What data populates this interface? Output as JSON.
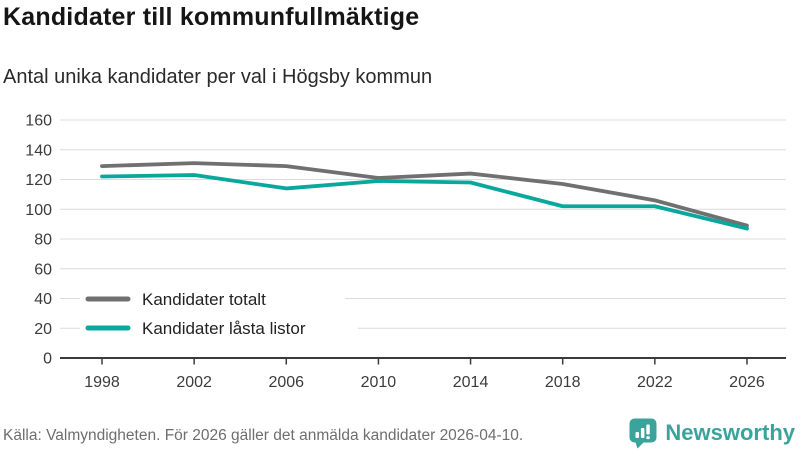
{
  "header": {
    "title": "Kandidater till kommunfullmäktige",
    "subtitle": "Antal unika kandidater per val i Högsby kommun"
  },
  "chart_data": {
    "type": "line",
    "x": [
      1998,
      2002,
      2006,
      2010,
      2014,
      2018,
      2022,
      2026
    ],
    "series": [
      {
        "name": "Kandidater totalt",
        "color": "#707070",
        "values": [
          129,
          131,
          129,
          121,
          124,
          117,
          106,
          89
        ]
      },
      {
        "name": "Kandidater låsta listor",
        "color": "#0aa79c",
        "values": [
          122,
          123,
          114,
          119,
          118,
          102,
          102,
          87
        ]
      }
    ],
    "ylim": [
      0,
      160
    ],
    "yticks": [
      0,
      20,
      40,
      60,
      80,
      100,
      120,
      140,
      160
    ],
    "grid": true,
    "legend_position": "inside-bottom-left",
    "gridline_color": "#dcdcdc",
    "axis_color": "#3a3a3a"
  },
  "footer": {
    "source": "Källa: Valmyndigheten. För 2026 gäller det anmälda kandidater 2026-04-10.",
    "brand_name": "Newsworthy",
    "brand_color": "#3aa39b",
    "logo_icon": "bar-chart-speech-bubble"
  }
}
